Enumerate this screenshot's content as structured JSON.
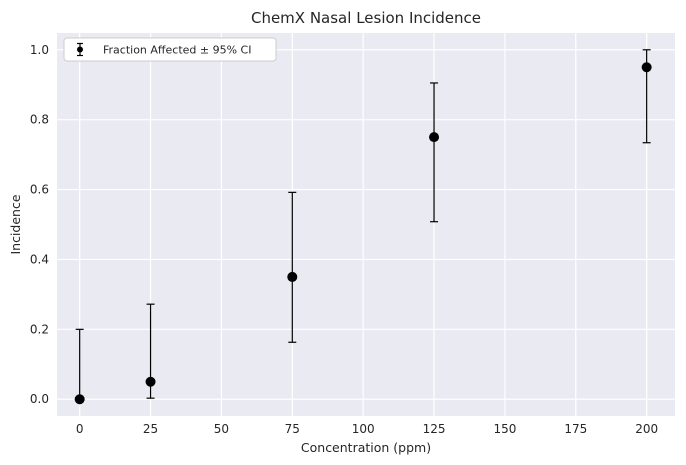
{
  "chart_data": {
    "type": "scatter",
    "title": "ChemX Nasal Lesion Incidence",
    "xlabel": "Concentration (ppm)",
    "ylabel": "Incidence",
    "xlim": [
      -8,
      210
    ],
    "ylim": [
      -0.048,
      1.048
    ],
    "xticks": [
      0,
      25,
      50,
      75,
      100,
      125,
      150,
      175,
      200
    ],
    "yticks": [
      0.0,
      0.2,
      0.4,
      0.6,
      0.8,
      1.0
    ],
    "ytick_labels": [
      "0.0",
      "0.2",
      "0.4",
      "0.6",
      "0.8",
      "1.0"
    ],
    "grid": true,
    "legend_position": "top-left",
    "series": [
      {
        "name": "Fraction Affected ± 95% CI",
        "color": "#000000",
        "points": [
          {
            "x": 0,
            "y": 0.0,
            "lower": 0.0,
            "upper": 0.2
          },
          {
            "x": 25,
            "y": 0.05,
            "lower": 0.003,
            "upper": 0.272
          },
          {
            "x": 75,
            "y": 0.35,
            "lower": 0.163,
            "upper": 0.592
          },
          {
            "x": 125,
            "y": 0.75,
            "lower": 0.508,
            "upper": 0.905
          },
          {
            "x": 200,
            "y": 0.95,
            "lower": 0.734,
            "upper": 1.0
          }
        ]
      }
    ],
    "colors": {
      "background": "#eaeaf2",
      "grid": "#ffffff",
      "text": "#262626"
    }
  }
}
